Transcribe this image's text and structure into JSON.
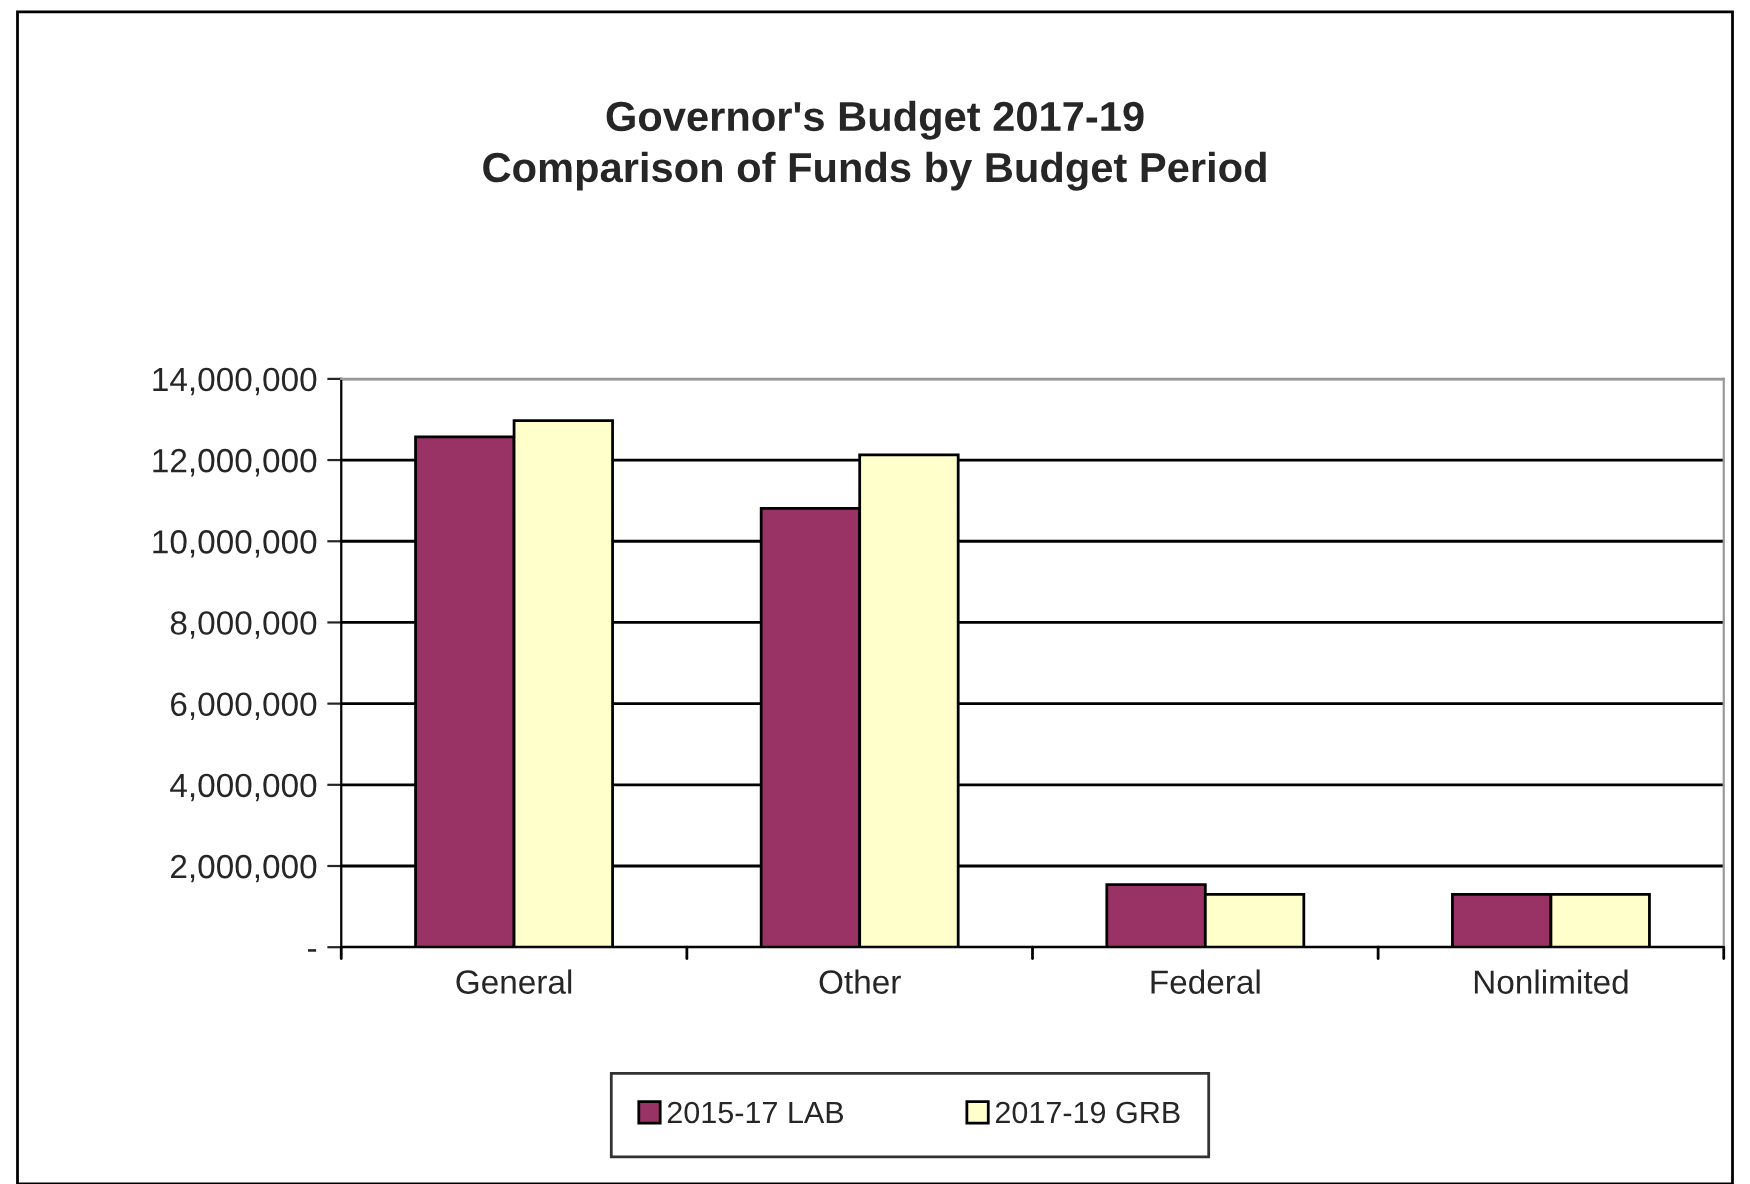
{
  "chart_data": {
    "type": "bar",
    "title": "Governor's Budget 2017-19\nComparison of Funds by Budget Period",
    "categories": [
      "General",
      "Other",
      "Federal",
      "Nonlimited"
    ],
    "series": [
      {
        "name": "2015-17 LAB",
        "color": "#993366",
        "values": [
          12570000,
          10810000,
          1540000,
          1300000
        ]
      },
      {
        "name": "2017-19 GRB",
        "color": "#ffffcc",
        "values": [
          12970000,
          12130000,
          1300000,
          1300000
        ]
      }
    ],
    "ylim": [
      0,
      14000000
    ],
    "yticks": [
      {
        "value": 0,
        "label": "-"
      },
      {
        "value": 2000000,
        "label": "2,000,000"
      },
      {
        "value": 4000000,
        "label": "4,000,000"
      },
      {
        "value": 6000000,
        "label": "6,000,000"
      },
      {
        "value": 8000000,
        "label": "8,000,000"
      },
      {
        "value": 10000000,
        "label": "10,000,000"
      },
      {
        "value": 12000000,
        "label": "12,000,000"
      },
      {
        "value": 14000000,
        "label": "14,000,000"
      }
    ],
    "grid": "y",
    "legend": "bottom"
  }
}
